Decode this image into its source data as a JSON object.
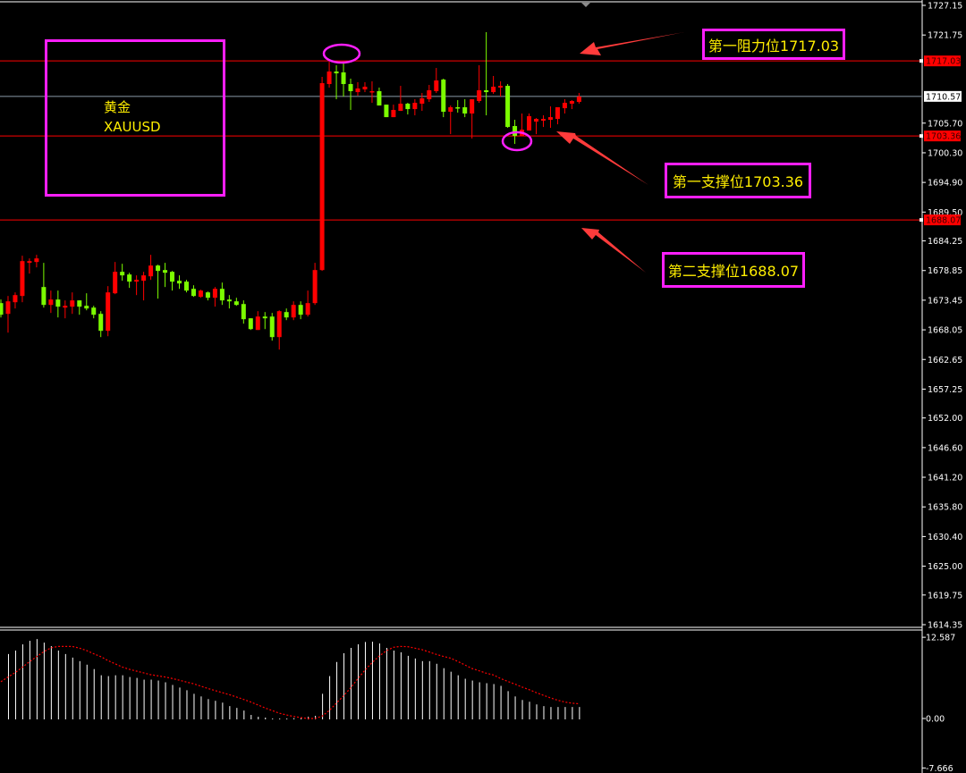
{
  "chart_data": [
    {
      "type": "candlestick",
      "symbol_label": "黄金",
      "symbol_code": "XAUUSD",
      "ylim": [
        1614.35,
        1727.15
      ],
      "y_ticks": [
        "1727.15",
        "1721.75",
        "1705.70",
        "1700.30",
        "1694.90",
        "1689.50",
        "1684.25",
        "1678.85",
        "1673.45",
        "1668.05",
        "1662.65",
        "1657.25",
        "1652.00",
        "1646.60",
        "1641.20",
        "1635.80",
        "1630.40",
        "1625.00",
        "1619.75",
        "1614.35"
      ],
      "grid": false,
      "colors": {
        "up": "#ff0000",
        "down": "#7cfc00",
        "background": "#000000",
        "level_line": "#ff0000",
        "current_price_line": "#8a9aa8",
        "annotation_box": "#ff1fff",
        "annotation_text": "#ffee00",
        "arrow": "#ff3b3b"
      },
      "candles": [
        [
          1672.92,
          1673.57,
          1670.31,
          1670.8
        ],
        [
          1670.96,
          1674.22,
          1667.54,
          1673.24
        ],
        [
          1673.08,
          1674.87,
          1671.94,
          1674.38
        ],
        [
          1674.22,
          1681.55,
          1673.08,
          1680.57
        ],
        [
          1680.25,
          1681.06,
          1678.29,
          1680.57
        ],
        [
          1680.41,
          1681.71,
          1679.43,
          1681.06
        ],
        [
          1675.85,
          1680.25,
          1672.1,
          1672.59
        ],
        [
          1672.59,
          1675.2,
          1671.13,
          1673.57
        ],
        [
          1673.57,
          1675.2,
          1670.31,
          1672.27
        ],
        [
          1672.1,
          1673.41,
          1670.15,
          1672.43
        ],
        [
          1672.27,
          1674.87,
          1670.96,
          1673.41
        ],
        [
          1673.41,
          1673.41,
          1670.8,
          1672.27
        ],
        [
          1672.43,
          1674.71,
          1671.61,
          1671.94
        ],
        [
          1672.1,
          1672.43,
          1670.15,
          1670.8
        ],
        [
          1670.96,
          1671.45,
          1666.73,
          1667.87
        ],
        [
          1667.87,
          1676.01,
          1666.89,
          1674.87
        ],
        [
          1674.71,
          1680.41,
          1674.55,
          1678.62
        ],
        [
          1678.62,
          1680.08,
          1676.99,
          1677.97
        ],
        [
          1678.13,
          1678.45,
          1675.69,
          1676.83
        ],
        [
          1676.83,
          1677.97,
          1674.38,
          1677.15
        ],
        [
          1676.99,
          1678.62,
          1673.41,
          1677.97
        ],
        [
          1677.8,
          1681.71,
          1677.15,
          1679.76
        ],
        [
          1679.76,
          1679.92,
          1673.73,
          1678.78
        ],
        [
          1678.94,
          1680.25,
          1675.85,
          1678.45
        ],
        [
          1678.62,
          1678.78,
          1675.2,
          1676.83
        ],
        [
          1676.99,
          1677.97,
          1675.52,
          1676.5
        ],
        [
          1676.83,
          1677.15,
          1674.87,
          1675.2
        ],
        [
          1675.52,
          1676.17,
          1674.06,
          1674.22
        ],
        [
          1674.06,
          1675.36,
          1673.89,
          1675.2
        ],
        [
          1674.87,
          1675.03,
          1673.41,
          1673.89
        ],
        [
          1673.89,
          1675.85,
          1672.27,
          1675.52
        ],
        [
          1675.52,
          1676.66,
          1672.59,
          1673.41
        ],
        [
          1673.57,
          1674.38,
          1671.94,
          1673.24
        ],
        [
          1673.24,
          1673.89,
          1672.43,
          1672.59
        ],
        [
          1672.75,
          1673.41,
          1669.17,
          1669.99
        ],
        [
          1670.15,
          1670.15,
          1668.03,
          1668.19
        ],
        [
          1668.03,
          1671.45,
          1668.03,
          1670.47
        ],
        [
          1670.47,
          1671.29,
          1668.19,
          1670.15
        ],
        [
          1670.47,
          1671.13,
          1666.08,
          1666.73
        ],
        [
          1666.73,
          1671.61,
          1664.45,
          1671.45
        ],
        [
          1671.29,
          1671.94,
          1669.82,
          1670.31
        ],
        [
          1670.31,
          1673.24,
          1669.82,
          1672.59
        ],
        [
          1672.59,
          1673.24,
          1669.99,
          1670.8
        ],
        [
          1670.8,
          1675.2,
          1670.47,
          1672.92
        ],
        [
          1672.92,
          1680.25,
          1672.59,
          1678.94
        ],
        [
          1678.94,
          1714.12,
          1678.78,
          1712.98
        ],
        [
          1712.82,
          1716.89,
          1712.17,
          1715.1
        ],
        [
          1715.1,
          1716.24,
          1710.05,
          1714.77
        ],
        [
          1714.94,
          1716.89,
          1710.54,
          1712.82
        ],
        [
          1712.82,
          1713.8,
          1708.1,
          1711.52
        ],
        [
          1711.35,
          1713.15,
          1710.7,
          1712.01
        ],
        [
          1711.84,
          1713.15,
          1711.35,
          1712.33
        ],
        [
          1711.35,
          1713.31,
          1709.4,
          1711.52
        ],
        [
          1711.52,
          1712.17,
          1708.91,
          1708.91
        ],
        [
          1709.07,
          1709.07,
          1706.79,
          1706.79
        ],
        [
          1706.79,
          1709.07,
          1706.79,
          1708.1
        ],
        [
          1707.93,
          1712.49,
          1707.93,
          1709.24
        ],
        [
          1709.24,
          1709.4,
          1707.28,
          1708.26
        ],
        [
          1708.26,
          1710.05,
          1707.12,
          1709.4
        ],
        [
          1709.24,
          1711.19,
          1707.93,
          1710.21
        ],
        [
          1710.05,
          1712.66,
          1709.56,
          1711.68
        ],
        [
          1711.52,
          1715.75,
          1711.19,
          1713.47
        ],
        [
          1713.63,
          1713.8,
          1706.79,
          1707.77
        ],
        [
          1707.77,
          1708.91,
          1703.7,
          1708.59
        ],
        [
          1708.59,
          1709.89,
          1707.61,
          1708.42
        ],
        [
          1708.59,
          1710.05,
          1706.79,
          1707.45
        ],
        [
          1707.45,
          1710.05,
          1702.89,
          1710.05
        ],
        [
          1709.73,
          1716.24,
          1709.4,
          1711.68
        ],
        [
          1711.68,
          1722.27,
          1707.12,
          1711.35
        ],
        [
          1711.35,
          1714.29,
          1711.03,
          1712.33
        ],
        [
          1712.17,
          1713.31,
          1710.54,
          1712.49
        ],
        [
          1712.49,
          1712.82,
          1704.84,
          1705.0
        ],
        [
          1705.17,
          1706.31,
          1701.91,
          1703.37
        ],
        [
          1703.37,
          1707.45,
          1703.37,
          1704.51
        ],
        [
          1704.35,
          1707.45,
          1704.35,
          1706.96
        ],
        [
          1705.98,
          1706.63,
          1703.7,
          1706.47
        ],
        [
          1706.14,
          1707.12,
          1705.0,
          1706.47
        ],
        [
          1706.31,
          1708.75,
          1704.84,
          1706.79
        ],
        [
          1706.47,
          1708.59,
          1705.49,
          1708.59
        ],
        [
          1708.42,
          1710.05,
          1707.45,
          1709.4
        ],
        [
          1709.24,
          1709.89,
          1708.26,
          1709.73
        ],
        [
          1709.56,
          1711.19,
          1709.24,
          1710.54
        ]
      ],
      "candle_fields": [
        "open",
        "high",
        "low",
        "close"
      ],
      "levels": [
        {
          "price": 1717.03,
          "tag": "1717.03",
          "label": "第一阻力位1717.03"
        },
        {
          "price": 1703.36,
          "tag": "1703.36",
          "label": "第一支撑位1703.36"
        },
        {
          "price": 1688.07,
          "tag": "1688.07",
          "label": "第二支撑位1688.07"
        }
      ],
      "current_price": {
        "price": 1710.57,
        "tag": "1710.57"
      }
    },
    {
      "type": "bar+line",
      "ylim": [
        -7.666,
        12.587
      ],
      "y_ticks": [
        "12.587",
        "0.00",
        "-7.666"
      ],
      "histogram": [
        null,
        9.99,
        10.53,
        11.49,
        12.04,
        12.31,
        11.76,
        11.22,
        10.53,
        9.99,
        9.44,
        8.89,
        8.34,
        7.66,
        6.7,
        6.57,
        6.7,
        6.7,
        6.43,
        6.29,
        6.02,
        6.02,
        5.88,
        5.61,
        5.2,
        4.79,
        4.38,
        3.83,
        3.42,
        3.01,
        2.74,
        2.46,
        1.92,
        1.64,
        1.23,
        0.55,
        0.27,
        0.14,
        0.0,
        0.0,
        0.0,
        0.05,
        0.14,
        0.27,
        0.41,
        3.83,
        6.57,
        8.76,
        10.12,
        10.94,
        11.49,
        11.86,
        11.9,
        11.63,
        10.94,
        10.53,
        10.26,
        9.71,
        9.3,
        8.89,
        8.89,
        8.48,
        7.8,
        7.25,
        6.7,
        6.16,
        5.88,
        5.61,
        5.47,
        5.34,
        5.06,
        4.24,
        3.42,
        2.87,
        2.6,
        2.19,
        1.92,
        1.78,
        1.78,
        1.78,
        1.78,
        1.78
      ],
      "signal": [
        5.7,
        6.43,
        7.11,
        7.93,
        8.8,
        9.58,
        10.35,
        10.94,
        11.17,
        11.17,
        11.17,
        10.9,
        10.53,
        10.03,
        9.58,
        8.98,
        8.48,
        7.98,
        7.62,
        7.34,
        7.07,
        6.79,
        6.61,
        6.43,
        6.2,
        5.93,
        5.65,
        5.38,
        5.02,
        4.65,
        4.33,
        4.01,
        3.69,
        3.33,
        2.96,
        2.55,
        2.1,
        1.64,
        1.23,
        0.82,
        0.55,
        0.32,
        0.14,
        0.0,
        0.0,
        0.36,
        1.23,
        2.37,
        3.51,
        4.74,
        6.16,
        7.48,
        8.66,
        9.67,
        10.49,
        11.04,
        11.17,
        11.13,
        10.9,
        10.67,
        10.31,
        9.94,
        9.62,
        9.35,
        8.85,
        8.3,
        7.75,
        7.39,
        7.02,
        6.75,
        6.2,
        5.75,
        5.34,
        4.88,
        4.47,
        4.01,
        3.6,
        3.19,
        2.83,
        2.55,
        2.37,
        2.28
      ],
      "colors": {
        "histogram": "#ffffff",
        "signal": "#ff0000"
      }
    }
  ]
}
